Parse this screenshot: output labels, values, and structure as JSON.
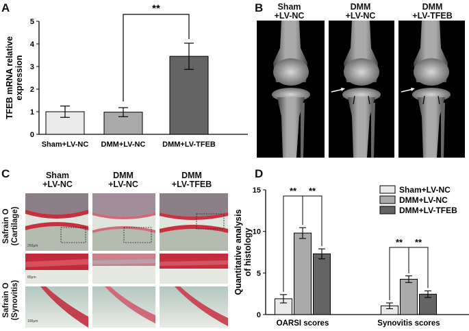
{
  "panels": {
    "A": {
      "label": "A"
    },
    "B": {
      "label": "B",
      "columns": [
        {
          "line1": "Sham",
          "line2": "+LV-NC"
        },
        {
          "line1": "DMM",
          "line2": "+LV-NC"
        },
        {
          "line1": "DMM",
          "line2": "+LV-TFEB"
        }
      ]
    },
    "C": {
      "label": "C",
      "columns": [
        {
          "line1": "Sham",
          "line2": "+LV-NC"
        },
        {
          "line1": "DMM",
          "line2": "+LV-NC"
        },
        {
          "line1": "DMM",
          "line2": "+LV-TFEB"
        }
      ],
      "rows": [
        {
          "line1": "Safrain O",
          "line2": "(Cartilage)"
        },
        {
          "line1": "Safrain O",
          "line2": "(Synovitis)"
        }
      ],
      "scalebars": [
        "200μm",
        "80μm",
        "100μm"
      ]
    },
    "D": {
      "label": "D"
    }
  },
  "chart_data": [
    {
      "type": "bar",
      "panel": "A",
      "ylabel": "TFEB mRNA relative expression",
      "categories": [
        "Sham+LV-NC",
        "DMM+LV-NC",
        "DMM+LV-TFEB"
      ],
      "values": [
        1.0,
        0.98,
        3.45
      ],
      "errors": [
        0.25,
        0.2,
        0.58
      ],
      "colors": [
        "#e9e9e9",
        "#aaaaaa",
        "#646464"
      ],
      "ylim": [
        0,
        5
      ],
      "yticks": [
        0,
        1,
        2,
        3,
        4,
        5
      ],
      "significance": [
        {
          "from": 1,
          "to": 2,
          "label": "**"
        }
      ]
    },
    {
      "type": "bar",
      "panel": "D",
      "ylabel": "Quantitative analysis of histology",
      "categories": [
        "OARSI scores",
        "Synovitis scores"
      ],
      "series": [
        {
          "name": "Sham+LV-NC",
          "values": [
            1.9,
            1.05
          ],
          "errors": [
            0.5,
            0.35
          ],
          "color": "#e9e9e9"
        },
        {
          "name": "DMM+LV-NC",
          "values": [
            9.8,
            4.25
          ],
          "errors": [
            0.65,
            0.4
          ],
          "color": "#aaaaaa"
        },
        {
          "name": "DMM+LV-TFEB",
          "values": [
            7.3,
            2.45
          ],
          "errors": [
            0.6,
            0.4
          ],
          "color": "#646464"
        }
      ],
      "ylim": [
        0,
        15
      ],
      "yticks": [
        0,
        5,
        10,
        15
      ],
      "legend": "top-right",
      "significance": [
        {
          "group": 0,
          "from": 0,
          "to": 1,
          "label": "**"
        },
        {
          "group": 0,
          "from": 1,
          "to": 2,
          "label": "**"
        },
        {
          "group": 1,
          "from": 0,
          "to": 1,
          "label": "**"
        },
        {
          "group": 1,
          "from": 1,
          "to": 2,
          "label": "**"
        }
      ]
    }
  ]
}
